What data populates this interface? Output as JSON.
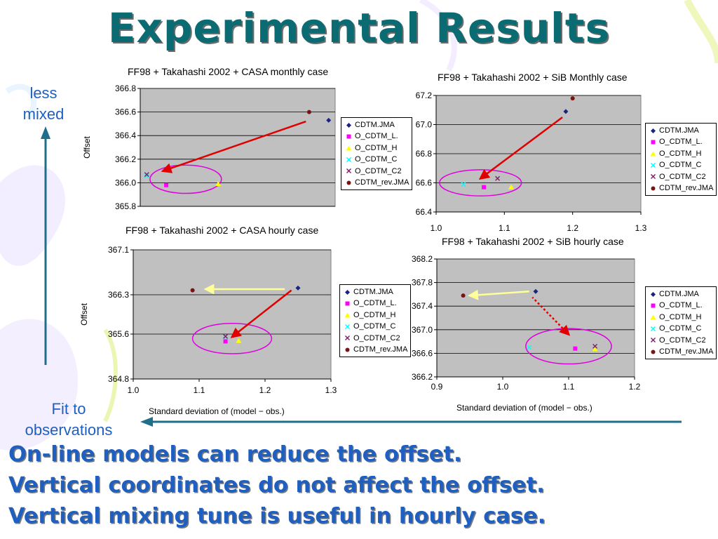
{
  "slide": {
    "title": "Experimental Results",
    "left_label": [
      "less",
      "mixed"
    ],
    "bottom_label": [
      "Fit to",
      "observations"
    ],
    "conclusions": [
      "On-line models can reduce the offset.",
      "Vertical coordinates do not affect the offset.",
      "Vertical mixing tune is useful in hourly case."
    ],
    "colors": {
      "title": "#0a6b73",
      "accent_text": "#1f5fbf",
      "arrow": "#1f6e8c"
    }
  },
  "legend": [
    {
      "name": "CDTM.JMA",
      "marker": "diamond",
      "color": "#1a237e"
    },
    {
      "name": "O_CDTM_L.",
      "marker": "square",
      "color": "#ff00ff"
    },
    {
      "name": "O_CDTM_H",
      "marker": "triangle",
      "color": "#ffff00"
    },
    {
      "name": "O_CDTM_C",
      "marker": "x",
      "color": "#00ffff"
    },
    {
      "name": "O_CDTM_C2",
      "marker": "x",
      "color": "#7b1f6e"
    },
    {
      "name": "CDTM_rev.JMA",
      "marker": "circle",
      "color": "#7a1414"
    }
  ],
  "legend_alt": [
    {
      "name": "CDTM.JMA"
    },
    {
      "name": "O_CDTM_L."
    },
    {
      "name": "O_CDTM_H"
    },
    {
      "name": "O_CDTM_C"
    },
    {
      "name": "O_CDTM_C2"
    },
    {
      "name": "CDTM_rev.JMA"
    }
  ],
  "chart_data": [
    {
      "type": "scatter",
      "title": "FF98 + Takahashi 2002 + CASA monthly case",
      "ylabel": "Offset",
      "xlabel": "",
      "xlim": [
        1.0,
        1.3
      ],
      "ylim": [
        365.8,
        366.8
      ],
      "yticks": [
        "365.8",
        "366.0",
        "366.2",
        "366.4",
        "366.6",
        "366.8"
      ],
      "xticks": [],
      "grid": true,
      "legend_position": "right",
      "points": [
        {
          "series": "CDTM.JMA",
          "x": 1.29,
          "y": 366.53
        },
        {
          "series": "O_CDTM_L.",
          "x": 1.04,
          "y": 365.98
        },
        {
          "series": "O_CDTM_H",
          "x": 1.12,
          "y": 365.99
        },
        {
          "series": "O_CDTM_C",
          "x": 1.01,
          "y": 366.06
        },
        {
          "series": "O_CDTM_C2",
          "x": 1.01,
          "y": 366.07
        },
        {
          "series": "CDTM_rev.JMA",
          "x": 1.26,
          "y": 366.6
        }
      ],
      "arrows": [
        {
          "from": [
            1.255,
            366.52
          ],
          "to": [
            1.035,
            366.1
          ],
          "color": "#e00000",
          "style": "solid"
        }
      ],
      "ellipses": [
        {
          "cx": 1.07,
          "cy": 366.03,
          "rx": 0.055,
          "ry": 0.12
        }
      ]
    },
    {
      "type": "scatter",
      "title": "FF98 + Takahashi 2002 + SiB Monthly case",
      "ylabel": "",
      "xlabel": "",
      "xlim": [
        1.0,
        1.3
      ],
      "ylim": [
        66.4,
        67.2
      ],
      "yticks": [
        "66.4",
        "66.6",
        "66.8",
        "67.0",
        "67.2"
      ],
      "xticks": [
        "1.0",
        "1.1",
        "1.2",
        "1.3"
      ],
      "grid": true,
      "legend_position": "right",
      "points": [
        {
          "series": "CDTM.JMA",
          "x": 1.19,
          "y": 67.09
        },
        {
          "series": "O_CDTM_L.",
          "x": 1.07,
          "y": 66.57
        },
        {
          "series": "O_CDTM_H",
          "x": 1.11,
          "y": 66.57
        },
        {
          "series": "O_CDTM_C",
          "x": 1.04,
          "y": 66.59
        },
        {
          "series": "O_CDTM_C2",
          "x": 1.09,
          "y": 66.63
        },
        {
          "series": "CDTM_rev.JMA",
          "x": 1.2,
          "y": 67.18
        }
      ],
      "arrows": [
        {
          "from": [
            1.185,
            67.05
          ],
          "to": [
            1.065,
            66.63
          ],
          "color": "#e00000",
          "style": "solid"
        }
      ],
      "ellipses": [
        {
          "cx": 1.065,
          "cy": 66.6,
          "rx": 0.06,
          "ry": 0.09
        }
      ]
    },
    {
      "type": "scatter",
      "title": "FF98 + Takahashi 2002 + CASA hourly case",
      "ylabel": "Offset",
      "xlabel": "Standard deviation of (model − obs.)",
      "xlim": [
        1.0,
        1.3
      ],
      "ylim": [
        364.8,
        367.1
      ],
      "yticks": [
        "364.8",
        "365.6",
        "366.3",
        "367.1"
      ],
      "xticks": [
        "1.0",
        "1.1",
        "1.2",
        "1.3"
      ],
      "grid": true,
      "legend_position": "right",
      "points": [
        {
          "series": "CDTM.JMA",
          "x": 1.25,
          "y": 366.42
        },
        {
          "series": "O_CDTM_L.",
          "x": 1.14,
          "y": 365.47
        },
        {
          "series": "O_CDTM_H",
          "x": 1.16,
          "y": 365.48
        },
        {
          "series": "O_CDTM_C",
          "x": 1.14,
          "y": 365.55
        },
        {
          "series": "O_CDTM_C2",
          "x": 1.14,
          "y": 365.56
        },
        {
          "series": "CDTM_rev.JMA",
          "x": 1.09,
          "y": 366.38
        }
      ],
      "arrows": [
        {
          "from": [
            1.24,
            366.38
          ],
          "to": [
            1.15,
            365.55
          ],
          "color": "#e00000",
          "style": "solid"
        },
        {
          "from": [
            1.23,
            366.4
          ],
          "to": [
            1.11,
            366.4
          ],
          "color": "#ffff99",
          "style": "solid"
        }
      ],
      "ellipses": [
        {
          "cx": 1.15,
          "cy": 365.52,
          "rx": 0.06,
          "ry": 0.27
        }
      ]
    },
    {
      "type": "scatter",
      "title": "FF98 + Takahashi 2002 + SiB hourly case",
      "ylabel": "",
      "xlabel": "Standard deviation of (model − obs.)",
      "xlim": [
        0.9,
        1.2
      ],
      "ylim": [
        366.2,
        368.2
      ],
      "yticks": [
        "366.2",
        "366.6",
        "367.0",
        "367.4",
        "367.8",
        "368.2"
      ],
      "xticks": [
        "0.9",
        "1.0",
        "1.1",
        "1.2"
      ],
      "grid": true,
      "legend_position": "right",
      "points": [
        {
          "series": "CDTM.JMA",
          "x": 1.05,
          "y": 367.65
        },
        {
          "series": "O_CDTM_L.",
          "x": 1.11,
          "y": 366.68
        },
        {
          "series": "O_CDTM_H",
          "x": 1.14,
          "y": 366.67
        },
        {
          "series": "O_CDTM_C",
          "x": 1.04,
          "y": 366.7
        },
        {
          "series": "O_CDTM_C2",
          "x": 1.14,
          "y": 366.72
        },
        {
          "series": "CDTM_rev.JMA",
          "x": 0.94,
          "y": 367.58
        }
      ],
      "arrows": [
        {
          "from": [
            1.1,
            366.92
          ],
          "to": [
            1.045,
            367.55
          ],
          "color": "#e00000",
          "style": "dotted",
          "reverse": true
        },
        {
          "from": [
            1.04,
            367.65
          ],
          "to": [
            0.95,
            367.58
          ],
          "color": "#ffff99",
          "style": "solid"
        }
      ],
      "ellipses": [
        {
          "cx": 1.1,
          "cy": 366.72,
          "rx": 0.065,
          "ry": 0.3
        }
      ]
    }
  ]
}
